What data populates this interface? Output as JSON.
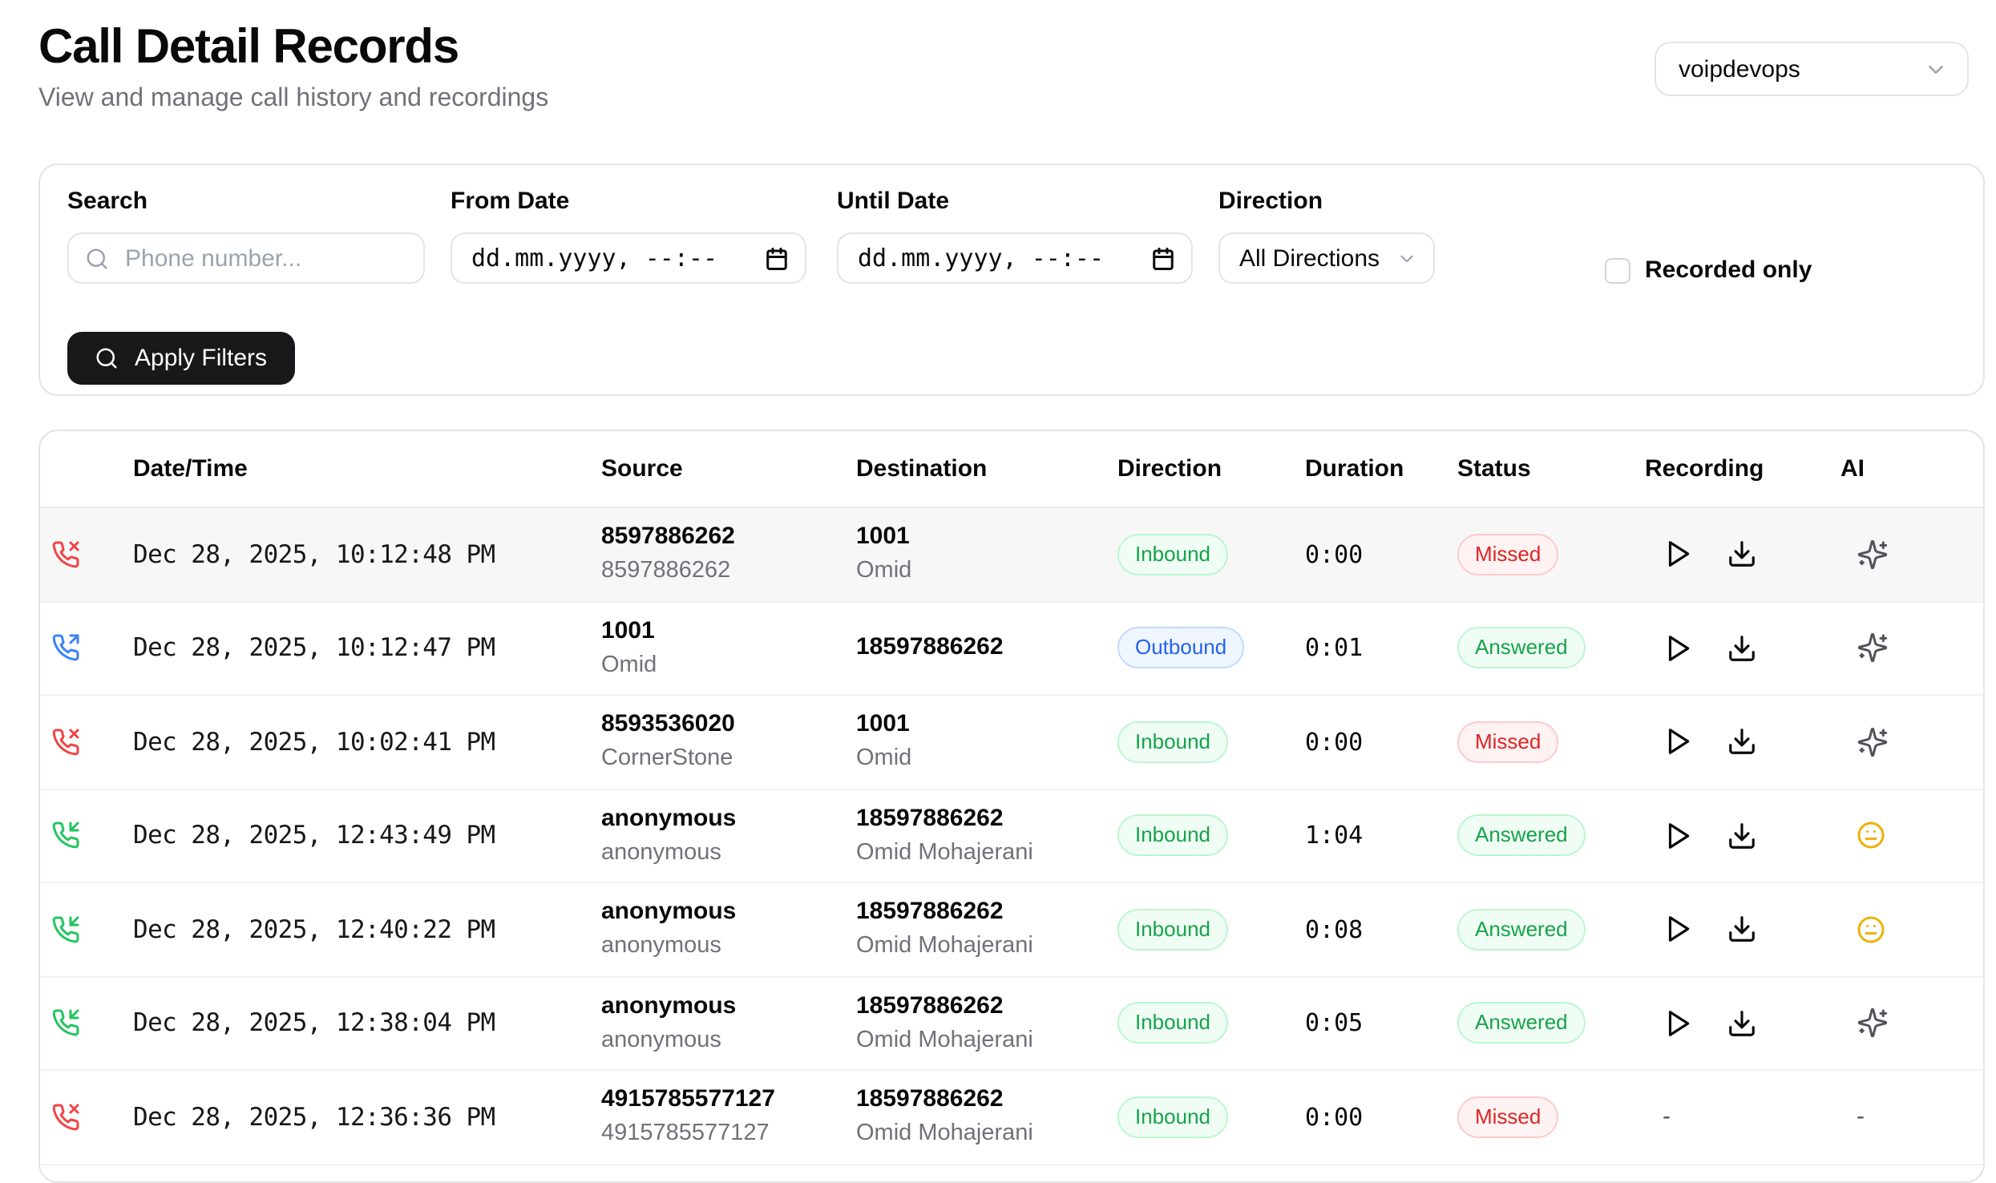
{
  "page": {
    "title": "Call Detail Records",
    "subtitle": "View and manage call history and recordings"
  },
  "account_selector": {
    "value": "voipdevops"
  },
  "filters": {
    "search": {
      "label": "Search",
      "placeholder": "Phone number..."
    },
    "from_date": {
      "label": "From Date",
      "placeholder": "dd.mm.yyyy, --:--"
    },
    "until_date": {
      "label": "Until Date",
      "placeholder": "dd.mm.yyyy, --:--"
    },
    "direction": {
      "label": "Direction",
      "value": "All Directions"
    },
    "recorded_only": {
      "label": "Recorded only",
      "checked": false
    },
    "apply_button": "Apply Filters"
  },
  "table": {
    "columns": [
      "Date/Time",
      "Source",
      "Destination",
      "Direction",
      "Duration",
      "Status",
      "Recording",
      "AI"
    ],
    "rows": [
      {
        "call_type": "missed",
        "datetime": "Dec 28, 2025, 10:12:48 PM",
        "source": "8597886262",
        "source_name": "8597886262",
        "destination": "1001",
        "destination_name": "Omid",
        "direction": "Inbound",
        "duration": "0:00",
        "status": "Missed",
        "recording": "controls",
        "ai": "sparkles",
        "hovered": true
      },
      {
        "call_type": "outgoing",
        "datetime": "Dec 28, 2025, 10:12:47 PM",
        "source": "1001",
        "source_name": "Omid",
        "destination": "18597886262",
        "destination_name": "",
        "direction": "Outbound",
        "duration": "0:01",
        "status": "Answered",
        "recording": "controls",
        "ai": "sparkles",
        "hovered": false
      },
      {
        "call_type": "missed",
        "datetime": "Dec 28, 2025, 10:02:41 PM",
        "source": "8593536020",
        "source_name": "CornerStone",
        "destination": "1001",
        "destination_name": "Omid",
        "direction": "Inbound",
        "duration": "0:00",
        "status": "Missed",
        "recording": "controls",
        "ai": "sparkles",
        "hovered": false
      },
      {
        "call_type": "incoming",
        "datetime": "Dec 28, 2025, 12:43:49 PM",
        "source": "anonymous",
        "source_name": "anonymous",
        "destination": "18597886262",
        "destination_name": "Omid Mohajerani",
        "direction": "Inbound",
        "duration": "1:04",
        "status": "Answered",
        "recording": "controls",
        "ai": "meh",
        "hovered": false
      },
      {
        "call_type": "incoming",
        "datetime": "Dec 28, 2025, 12:40:22 PM",
        "source": "anonymous",
        "source_name": "anonymous",
        "destination": "18597886262",
        "destination_name": "Omid Mohajerani",
        "direction": "Inbound",
        "duration": "0:08",
        "status": "Answered",
        "recording": "controls",
        "ai": "meh",
        "hovered": false
      },
      {
        "call_type": "incoming",
        "datetime": "Dec 28, 2025, 12:38:04 PM",
        "source": "anonymous",
        "source_name": "anonymous",
        "destination": "18597886262",
        "destination_name": "Omid Mohajerani",
        "direction": "Inbound",
        "duration": "0:05",
        "status": "Answered",
        "recording": "controls",
        "ai": "sparkles",
        "hovered": false
      },
      {
        "call_type": "missed",
        "datetime": "Dec 28, 2025, 12:36:36 PM",
        "source": "4915785577127",
        "source_name": "4915785577127",
        "destination": "18597886262",
        "destination_name": "Omid Mohajerani",
        "direction": "Inbound",
        "duration": "0:00",
        "status": "Missed",
        "recording": "none",
        "ai": "none",
        "hovered": false
      }
    ]
  },
  "colors": {
    "accent_dark": "#18181b",
    "missed_icon": "#ef4444",
    "outgoing_icon": "#3b82f6",
    "incoming_icon": "#22c55e",
    "badge_green_text": "#16a34a",
    "badge_green_bg": "#f0fdf4",
    "badge_green_border": "#bbf7d0",
    "badge_blue_text": "#2563eb",
    "badge_blue_bg": "#eff6ff",
    "badge_blue_border": "#bfdbfe",
    "badge_red_text": "#dc2626",
    "badge_red_bg": "#fef2f2",
    "badge_red_border": "#fecaca",
    "meh_icon": "#eab308",
    "sparkles_icon": "#52525b"
  }
}
